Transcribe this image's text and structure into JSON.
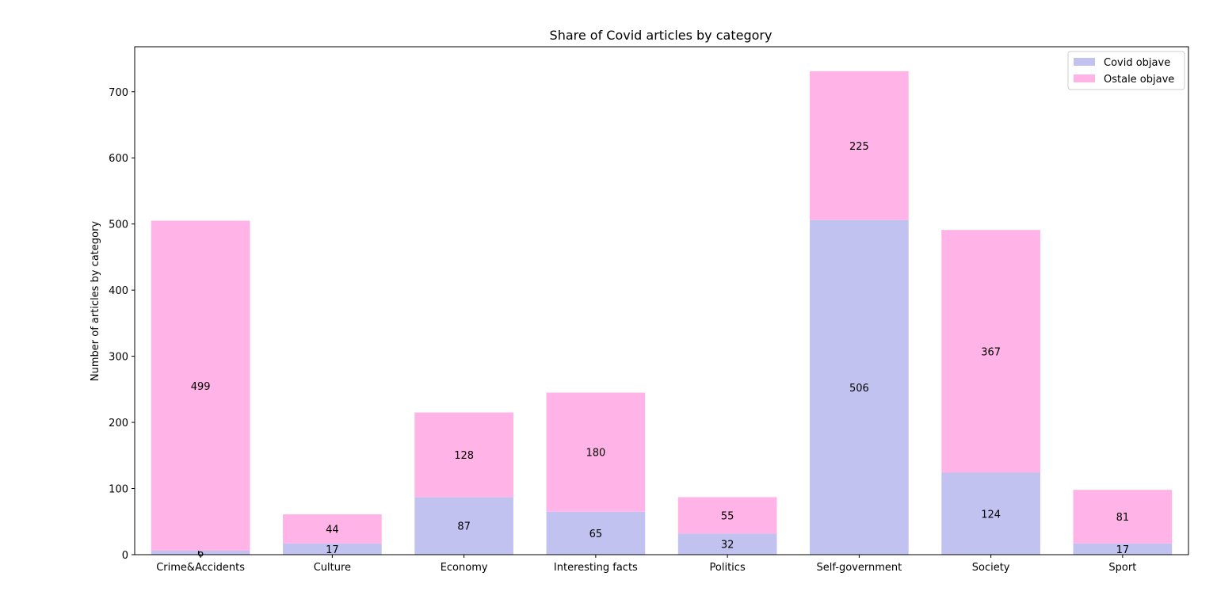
{
  "chart_data": {
    "type": "bar",
    "stacked": true,
    "title": "Share of Covid articles by category",
    "xlabel": "",
    "ylabel": "Number of articles by category",
    "ylim": [
      0,
      768
    ],
    "yticks": [
      0,
      100,
      200,
      300,
      400,
      500,
      600,
      700
    ],
    "grid": false,
    "legend_position": "top-right",
    "categories": [
      "Crime&Accidents",
      "Culture",
      "Economy",
      "Interesting facts",
      "Politics",
      "Self-government",
      "Society",
      "Sport"
    ],
    "series": [
      {
        "name": "Covid objave",
        "color": "#c2c2f0",
        "values": [
          6,
          17,
          87,
          65,
          32,
          506,
          124,
          17
        ]
      },
      {
        "name": "Ostale objave",
        "color": "#ffb3e6",
        "values": [
          499,
          44,
          128,
          180,
          55,
          225,
          367,
          81
        ]
      }
    ]
  }
}
